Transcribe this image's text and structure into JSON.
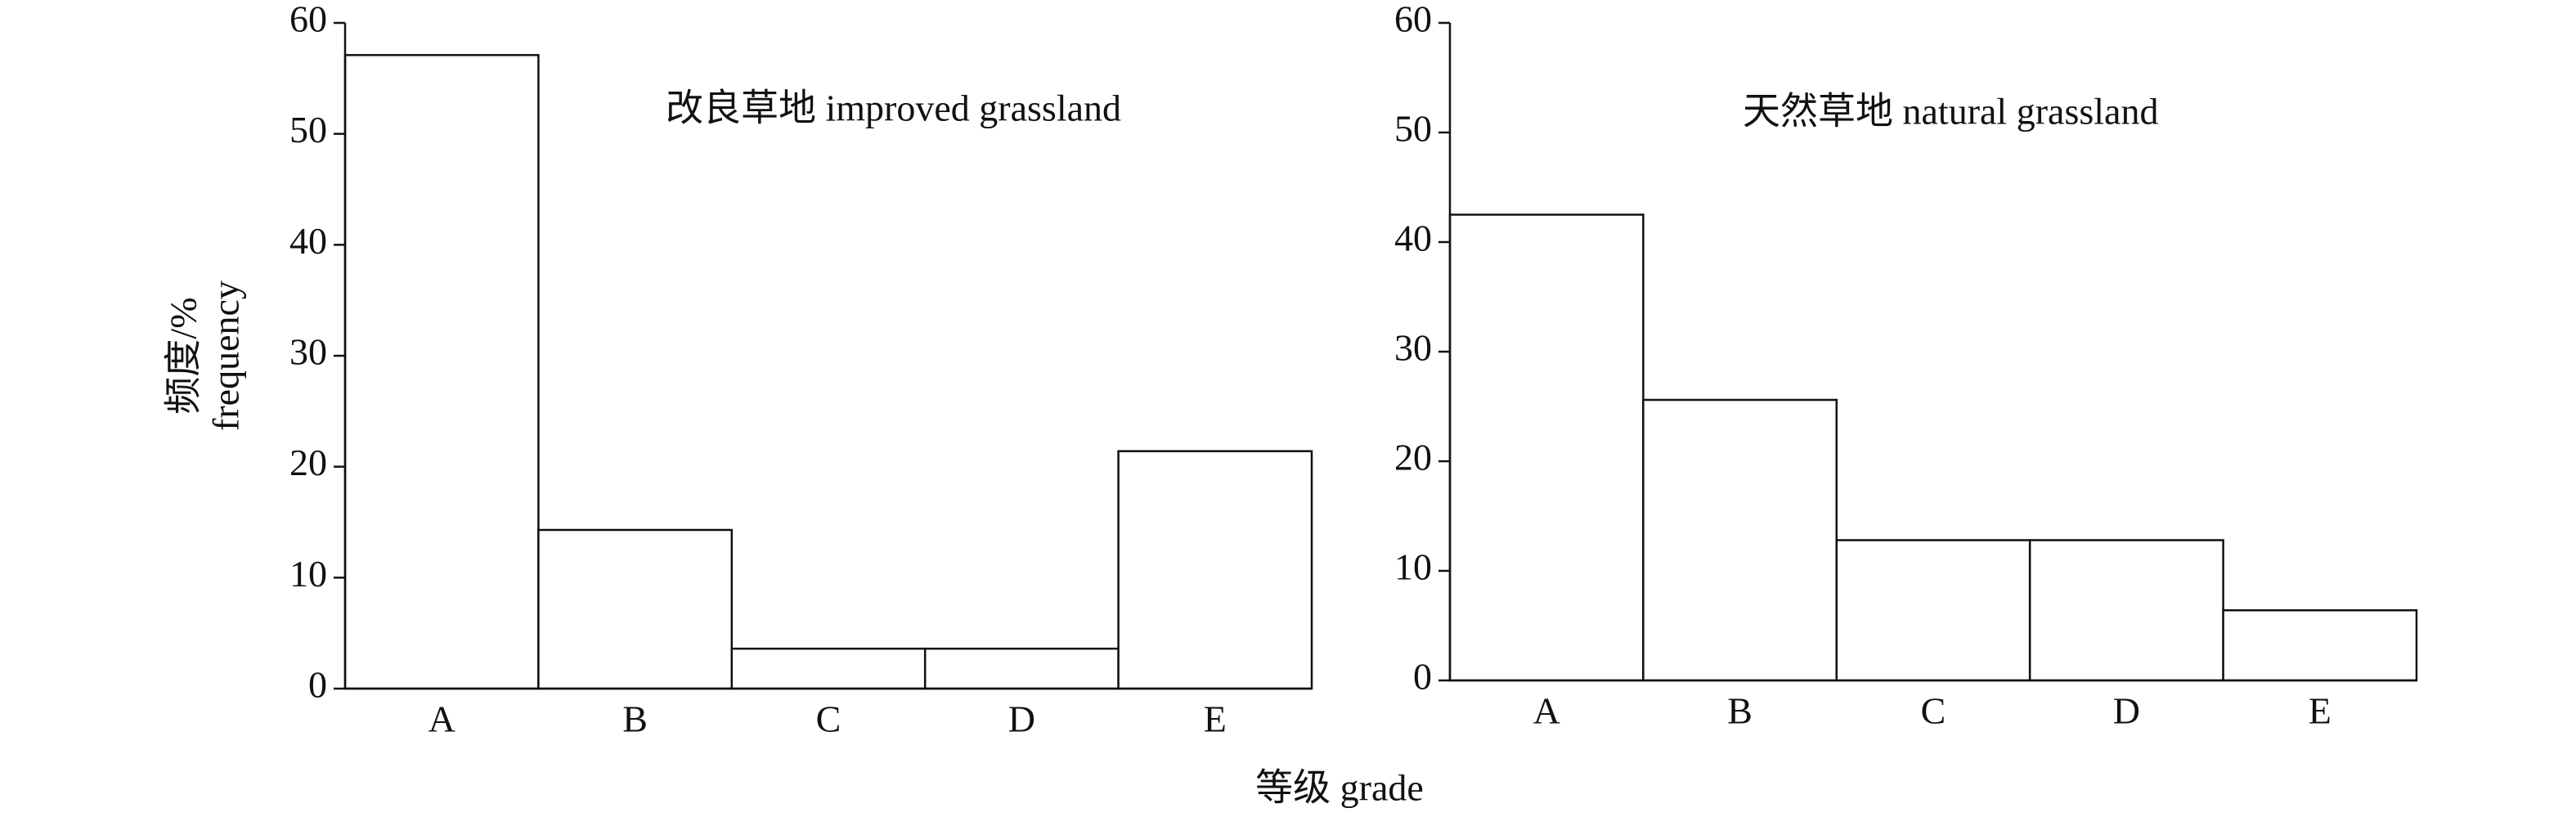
{
  "chart_data": [
    {
      "type": "bar",
      "title": "改良草地 improved grassland",
      "ylabel": [
        "频度/%",
        "frequency"
      ],
      "categories": [
        "A",
        "B",
        "C",
        "D",
        "E"
      ],
      "values": [
        57.1,
        14.3,
        3.6,
        3.6,
        21.4
      ],
      "color": "#ffffff",
      "ylim": [
        0,
        60
      ],
      "yticks": [
        0,
        10,
        20,
        30,
        40,
        50,
        60
      ]
    },
    {
      "type": "bar",
      "title": "天然草地 natural grassland",
      "categories": [
        "A",
        "B",
        "C",
        "D",
        "E"
      ],
      "values": [
        42.5,
        25.6,
        12.8,
        12.8,
        6.4
      ],
      "color": "#ffffff",
      "ylim": [
        0,
        60
      ],
      "yticks": [
        0,
        10,
        20,
        30,
        40,
        50,
        60
      ]
    }
  ],
  "xlabel": "等级 grade"
}
